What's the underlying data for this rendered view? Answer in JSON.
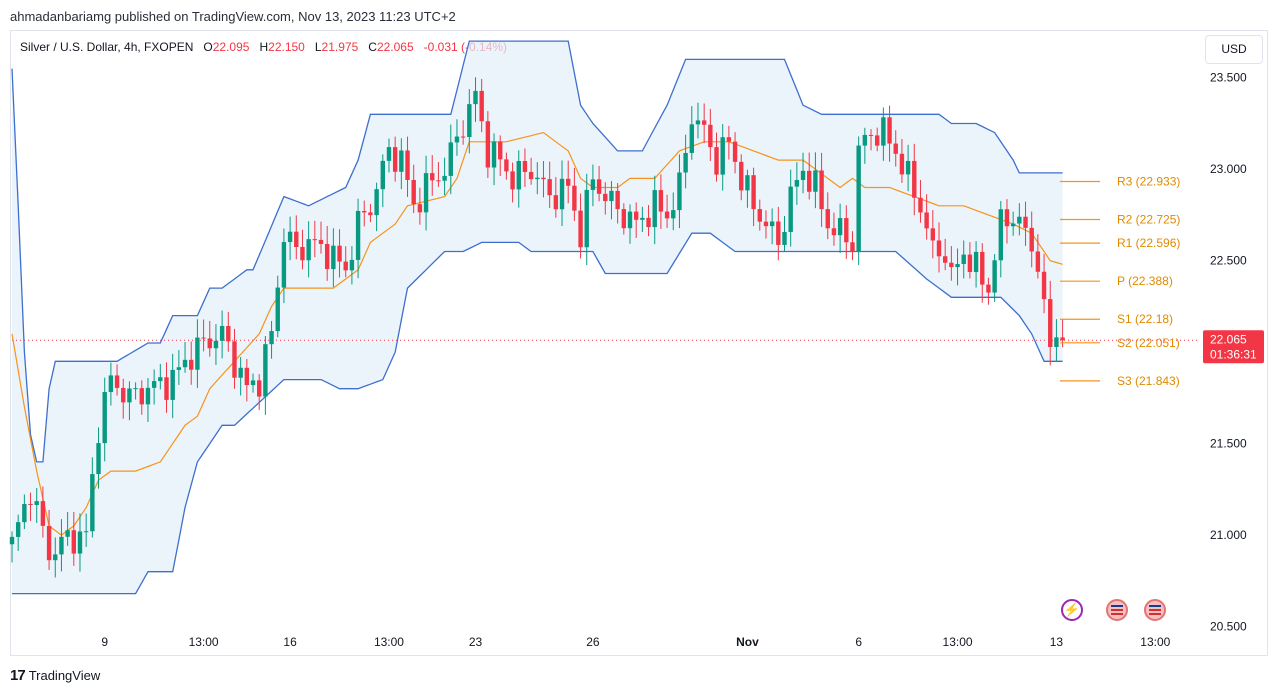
{
  "header": {
    "published": "ahmadanbariamg published on TradingView.com, Nov 13, 2023 11:23 UTC+2"
  },
  "symbol": {
    "name": "Silver / U.S. Dollar, 4h, FXOPEN",
    "o_label": "O",
    "o_val": "22.095",
    "h_label": "H",
    "h_val": "22.150",
    "l_label": "L",
    "l_val": "21.975",
    "c_label": "C",
    "c_val": "22.065",
    "change": "-0.031 (-0.14%)"
  },
  "currency_button": "USD",
  "footer": {
    "brand": "TradingView"
  },
  "colors": {
    "up": "#089981",
    "down": "#f23645",
    "channel": "#3d6fcf",
    "basis": "#f7931a",
    "pivot": "#f7931a",
    "fill": "#e3f0fa",
    "price_tag": "#f23645"
  },
  "chart_data": {
    "type": "candlestick",
    "ylim": [
      20.35,
      23.75
    ],
    "y_ticks": [
      "23.500",
      "23.000",
      "22.500",
      "22.000",
      "21.500",
      "21.000",
      "20.500"
    ],
    "y_tick_values": [
      23.5,
      23.0,
      22.5,
      22.0,
      21.5,
      21.0,
      20.5
    ],
    "x_ticks": [
      {
        "label": "9",
        "bar": 15
      },
      {
        "label": "13:00",
        "bar": 31
      },
      {
        "label": "16",
        "bar": 45
      },
      {
        "label": "13:00",
        "bar": 61
      },
      {
        "label": "23",
        "bar": 75
      },
      {
        "label": "26",
        "bar": 94
      },
      {
        "label": "Nov",
        "bar": 119
      },
      {
        "label": "6",
        "bar": 137
      },
      {
        "label": "13:00",
        "bar": 153
      },
      {
        "label": "13",
        "bar": 169
      },
      {
        "label": "13:00",
        "bar": 185
      }
    ],
    "last_price": "22.065",
    "countdown": "01:36:31",
    "close_anchors": [
      [
        0,
        20.95
      ],
      [
        3,
        21.25
      ],
      [
        6,
        20.9
      ],
      [
        9,
        20.98
      ],
      [
        12,
        21.0
      ],
      [
        14,
        21.6
      ],
      [
        16,
        21.85
      ],
      [
        19,
        21.75
      ],
      [
        22,
        21.8
      ],
      [
        26,
        21.85
      ],
      [
        28,
        21.95
      ],
      [
        31,
        22.05
      ],
      [
        34,
        22.1
      ],
      [
        36,
        21.95
      ],
      [
        38,
        21.8
      ],
      [
        40,
        21.85
      ],
      [
        42,
        22.1
      ],
      [
        44,
        22.65
      ],
      [
        46,
        22.55
      ],
      [
        48,
        22.6
      ],
      [
        51,
        22.55
      ],
      [
        54,
        22.45
      ],
      [
        56,
        22.7
      ],
      [
        58,
        22.8
      ],
      [
        61,
        23.1
      ],
      [
        63,
        23.05
      ],
      [
        65,
        22.8
      ],
      [
        67,
        22.9
      ],
      [
        70,
        23.0
      ],
      [
        73,
        23.25
      ],
      [
        75,
        23.4
      ],
      [
        77,
        23.1
      ],
      [
        79,
        23.05
      ],
      [
        81,
        22.95
      ],
      [
        84,
        23.0
      ],
      [
        87,
        22.85
      ],
      [
        90,
        22.9
      ],
      [
        92,
        22.65
      ],
      [
        94,
        22.95
      ],
      [
        96,
        22.85
      ],
      [
        99,
        22.75
      ],
      [
        101,
        22.7
      ],
      [
        104,
        22.8
      ],
      [
        106,
        22.75
      ],
      [
        108,
        22.9
      ],
      [
        110,
        23.3
      ],
      [
        112,
        23.2
      ],
      [
        114,
        23.05
      ],
      [
        116,
        23.15
      ],
      [
        118,
        22.95
      ],
      [
        120,
        22.8
      ],
      [
        122,
        22.7
      ],
      [
        124,
        22.6
      ],
      [
        126,
        22.85
      ],
      [
        128,
        23.0
      ],
      [
        130,
        22.9
      ],
      [
        132,
        22.7
      ],
      [
        134,
        22.65
      ],
      [
        136,
        22.6
      ],
      [
        137,
        23.1
      ],
      [
        139,
        23.2
      ],
      [
        141,
        23.2
      ],
      [
        143,
        23.1
      ],
      [
        145,
        22.95
      ],
      [
        147,
        22.8
      ],
      [
        149,
        22.55
      ],
      [
        151,
        22.55
      ],
      [
        152,
        22.4
      ],
      [
        154,
        22.55
      ],
      [
        156,
        22.45
      ],
      [
        158,
        22.35
      ],
      [
        160,
        22.7
      ],
      [
        162,
        22.75
      ],
      [
        164,
        22.65
      ],
      [
        166,
        22.5
      ],
      [
        167,
        22.2
      ],
      [
        168,
        22.05
      ],
      [
        169,
        22.1
      ],
      [
        170,
        22.065
      ]
    ],
    "channel": {
      "upper": [
        [
          0,
          23.55
        ],
        [
          1,
          22.8
        ],
        [
          2,
          22.0
        ],
        [
          3,
          21.55
        ],
        [
          4,
          21.4
        ],
        [
          5,
          21.4
        ],
        [
          6,
          21.8
        ],
        [
          7,
          21.95
        ],
        [
          15,
          21.95
        ],
        [
          17,
          21.95
        ],
        [
          22,
          22.05
        ],
        [
          24,
          22.05
        ],
        [
          26,
          22.2
        ],
        [
          28,
          22.2
        ],
        [
          30,
          22.2
        ],
        [
          32,
          22.35
        ],
        [
          34,
          22.35
        ],
        [
          38,
          22.45
        ],
        [
          39,
          22.45
        ],
        [
          44,
          22.85
        ],
        [
          48,
          22.8
        ],
        [
          54,
          22.9
        ],
        [
          56,
          23.05
        ],
        [
          58,
          23.3
        ],
        [
          71,
          23.3
        ],
        [
          74,
          23.7
        ],
        [
          90,
          23.7
        ],
        [
          92,
          23.35
        ],
        [
          94,
          23.25
        ],
        [
          98,
          23.1
        ],
        [
          102,
          23.1
        ],
        [
          106,
          23.35
        ],
        [
          109,
          23.6
        ],
        [
          125,
          23.6
        ],
        [
          128,
          23.35
        ],
        [
          131,
          23.3
        ],
        [
          140,
          23.3
        ],
        [
          150,
          23.3
        ],
        [
          152,
          23.25
        ],
        [
          156,
          23.25
        ],
        [
          159,
          23.2
        ],
        [
          162,
          23.05
        ],
        [
          163,
          22.98
        ],
        [
          170,
          22.98
        ]
      ],
      "lower": [
        [
          0,
          20.68
        ],
        [
          20,
          20.68
        ],
        [
          22,
          20.8
        ],
        [
          24,
          20.8
        ],
        [
          26,
          20.8
        ],
        [
          28,
          21.15
        ],
        [
          30,
          21.4
        ],
        [
          34,
          21.6
        ],
        [
          36,
          21.6
        ],
        [
          44,
          21.85
        ],
        [
          46,
          21.85
        ],
        [
          50,
          21.85
        ],
        [
          53,
          21.8
        ],
        [
          56,
          21.8
        ],
        [
          60,
          21.85
        ],
        [
          62,
          22.0
        ],
        [
          64,
          22.35
        ],
        [
          70,
          22.55
        ],
        [
          73,
          22.55
        ],
        [
          76,
          22.6
        ],
        [
          82,
          22.6
        ],
        [
          84,
          22.55
        ],
        [
          90,
          22.55
        ],
        [
          94,
          22.55
        ],
        [
          96,
          22.43
        ],
        [
          98,
          22.43
        ],
        [
          103,
          22.43
        ],
        [
          106,
          22.43
        ],
        [
          110,
          22.65
        ],
        [
          113,
          22.65
        ],
        [
          117,
          22.55
        ],
        [
          130,
          22.55
        ],
        [
          137,
          22.55
        ],
        [
          143,
          22.55
        ],
        [
          148,
          22.4
        ],
        [
          150,
          22.35
        ],
        [
          152,
          22.3
        ],
        [
          160,
          22.3
        ],
        [
          163,
          22.2
        ],
        [
          165,
          22.1
        ],
        [
          167,
          21.95
        ],
        [
          170,
          21.95
        ]
      ],
      "basis": [
        [
          0,
          22.1
        ],
        [
          2,
          21.7
        ],
        [
          4,
          21.35
        ],
        [
          6,
          21.05
        ],
        [
          8,
          21.0
        ],
        [
          10,
          21.05
        ],
        [
          12,
          21.15
        ],
        [
          14,
          21.3
        ],
        [
          16,
          21.35
        ],
        [
          20,
          21.35
        ],
        [
          24,
          21.4
        ],
        [
          28,
          21.6
        ],
        [
          30,
          21.65
        ],
        [
          32,
          21.8
        ],
        [
          36,
          21.95
        ],
        [
          40,
          22.1
        ],
        [
          42,
          22.25
        ],
        [
          44,
          22.35
        ],
        [
          48,
          22.35
        ],
        [
          52,
          22.35
        ],
        [
          56,
          22.45
        ],
        [
          58,
          22.6
        ],
        [
          62,
          22.7
        ],
        [
          64,
          22.8
        ],
        [
          70,
          22.85
        ],
        [
          72,
          22.95
        ],
        [
          74,
          23.15
        ],
        [
          80,
          23.15
        ],
        [
          86,
          23.2
        ],
        [
          90,
          23.1
        ],
        [
          92,
          22.95
        ],
        [
          94,
          22.9
        ],
        [
          98,
          22.9
        ],
        [
          100,
          22.95
        ],
        [
          104,
          22.95
        ],
        [
          108,
          23.1
        ],
        [
          112,
          23.15
        ],
        [
          116,
          23.15
        ],
        [
          120,
          23.1
        ],
        [
          124,
          23.05
        ],
        [
          128,
          23.05
        ],
        [
          132,
          22.95
        ],
        [
          134,
          22.9
        ],
        [
          136,
          22.95
        ],
        [
          138,
          22.9
        ],
        [
          142,
          22.9
        ],
        [
          146,
          22.85
        ],
        [
          150,
          22.8
        ],
        [
          154,
          22.8
        ],
        [
          158,
          22.75
        ],
        [
          162,
          22.7
        ],
        [
          165,
          22.65
        ],
        [
          168,
          22.5
        ],
        [
          170,
          22.48
        ]
      ]
    },
    "pivots": [
      {
        "label": "R3 (22.933)",
        "value": 22.933
      },
      {
        "label": "R2 (22.725)",
        "value": 22.725
      },
      {
        "label": "R1 (22.596)",
        "value": 22.596
      },
      {
        "label": "P (22.388)",
        "value": 22.388
      },
      {
        "label": "S1 (22.18)",
        "value": 22.18
      },
      {
        "label": "S2 (22.051)",
        "value": 22.051
      },
      {
        "label": "S3 (21.843)",
        "value": 21.843
      }
    ]
  }
}
